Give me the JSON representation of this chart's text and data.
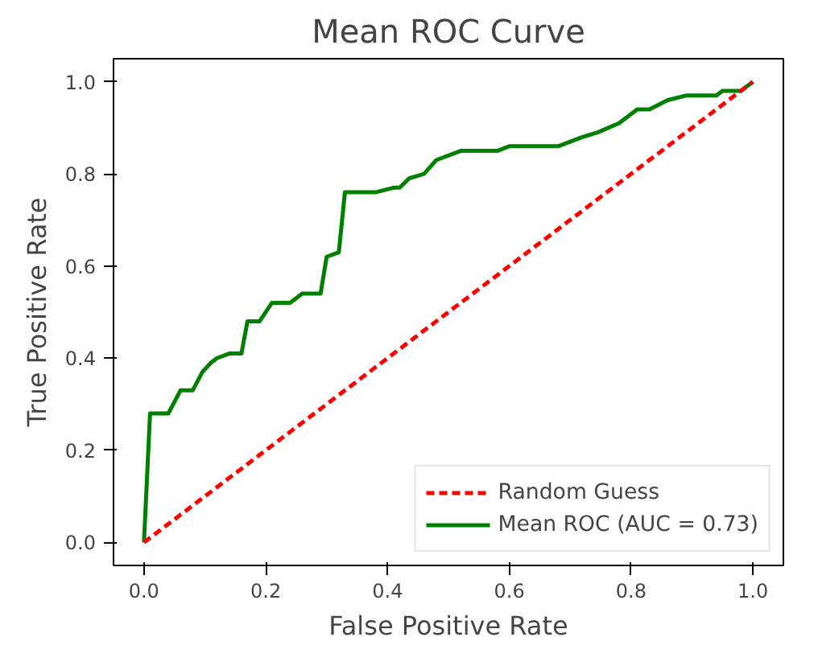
{
  "chart_data": {
    "type": "line",
    "title": "Mean ROC Curve",
    "xlabel": "False Positive Rate",
    "ylabel": "True Positive Rate",
    "xlim": [
      -0.05,
      1.05
    ],
    "ylim": [
      -0.05,
      1.05
    ],
    "xticks": [
      {
        "value": 0,
        "label": "0.0"
      },
      0.2,
      0.4,
      0.6,
      0.8,
      {
        "value": 1,
        "label": "1.0"
      }
    ],
    "yticks": [
      {
        "value": 0,
        "label": "0.0"
      },
      0.2,
      0.4,
      0.6,
      0.8,
      {
        "value": 1,
        "label": "1.0"
      }
    ],
    "grid": false,
    "legend": "bottom right",
    "marker": "none",
    "series": [
      {
        "name": "Random Guess",
        "color": "#ff0000",
        "line_style": "dashed",
        "x": [
          0,
          1
        ],
        "values": [
          0,
          1
        ]
      },
      {
        "name": "Mean ROC (AUC = 0.73)",
        "color": "#008000",
        "line_style": "solid",
        "x": [
          0,
          0.01,
          0.04,
          0.06,
          0.08,
          0.096,
          0.11,
          0.12,
          0.14,
          0.16,
          0.17,
          0.19,
          0.21,
          0.24,
          0.26,
          0.29,
          0.3,
          0.32,
          0.33,
          0.38,
          0.41,
          0.42,
          0.435,
          0.46,
          0.48,
          0.52,
          0.58,
          0.6,
          0.68,
          0.7,
          0.72,
          0.745,
          0.78,
          0.81,
          0.83,
          0.86,
          0.89,
          0.94,
          0.95,
          0.98,
          1.0
        ],
        "values": [
          0,
          0.28,
          0.28,
          0.33,
          0.33,
          0.37,
          0.39,
          0.4,
          0.41,
          0.41,
          0.48,
          0.48,
          0.52,
          0.52,
          0.54,
          0.54,
          0.62,
          0.63,
          0.76,
          0.76,
          0.77,
          0.77,
          0.79,
          0.8,
          0.83,
          0.85,
          0.85,
          0.86,
          0.86,
          0.87,
          0.88,
          0.89,
          0.91,
          0.94,
          0.94,
          0.96,
          0.97,
          0.97,
          0.98,
          0.98,
          1.0
        ]
      }
    ]
  }
}
